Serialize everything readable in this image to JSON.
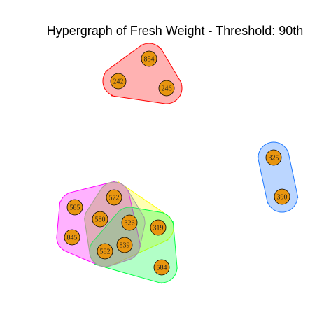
{
  "title": "Hypergraph of Fresh Weight - Threshold: 90th",
  "node_color": "#e8950f",
  "nodes": [
    "854",
    "242",
    "246",
    "325",
    "390",
    "572",
    "585",
    "580",
    "326",
    "319",
    "845",
    "582",
    "839",
    "584"
  ],
  "hyperedges": [
    {
      "members": [
        "854",
        "242",
        "246"
      ],
      "fill": "#ff0000",
      "stroke": "#ff0000"
    },
    {
      "members": [
        "325",
        "390"
      ],
      "fill": "#1e78ff",
      "stroke": "#1e78ff"
    },
    {
      "members": [
        "572",
        "319",
        "582",
        "580"
      ],
      "fill": "#ffff00",
      "stroke": "#ffff00"
    },
    {
      "members": [
        "585",
        "845",
        "572",
        "580",
        "582",
        "839"
      ],
      "fill": "#ff00ff",
      "stroke": "#ff00ff"
    },
    {
      "members": [
        "326",
        "319",
        "582",
        "839",
        "584"
      ],
      "fill": "#00ff44",
      "stroke": "#00ff44"
    },
    {
      "members": [
        "572",
        "580",
        "326",
        "582",
        "839"
      ],
      "fill": "#a0a0a0",
      "stroke": "#a0a0a0"
    }
  ]
}
